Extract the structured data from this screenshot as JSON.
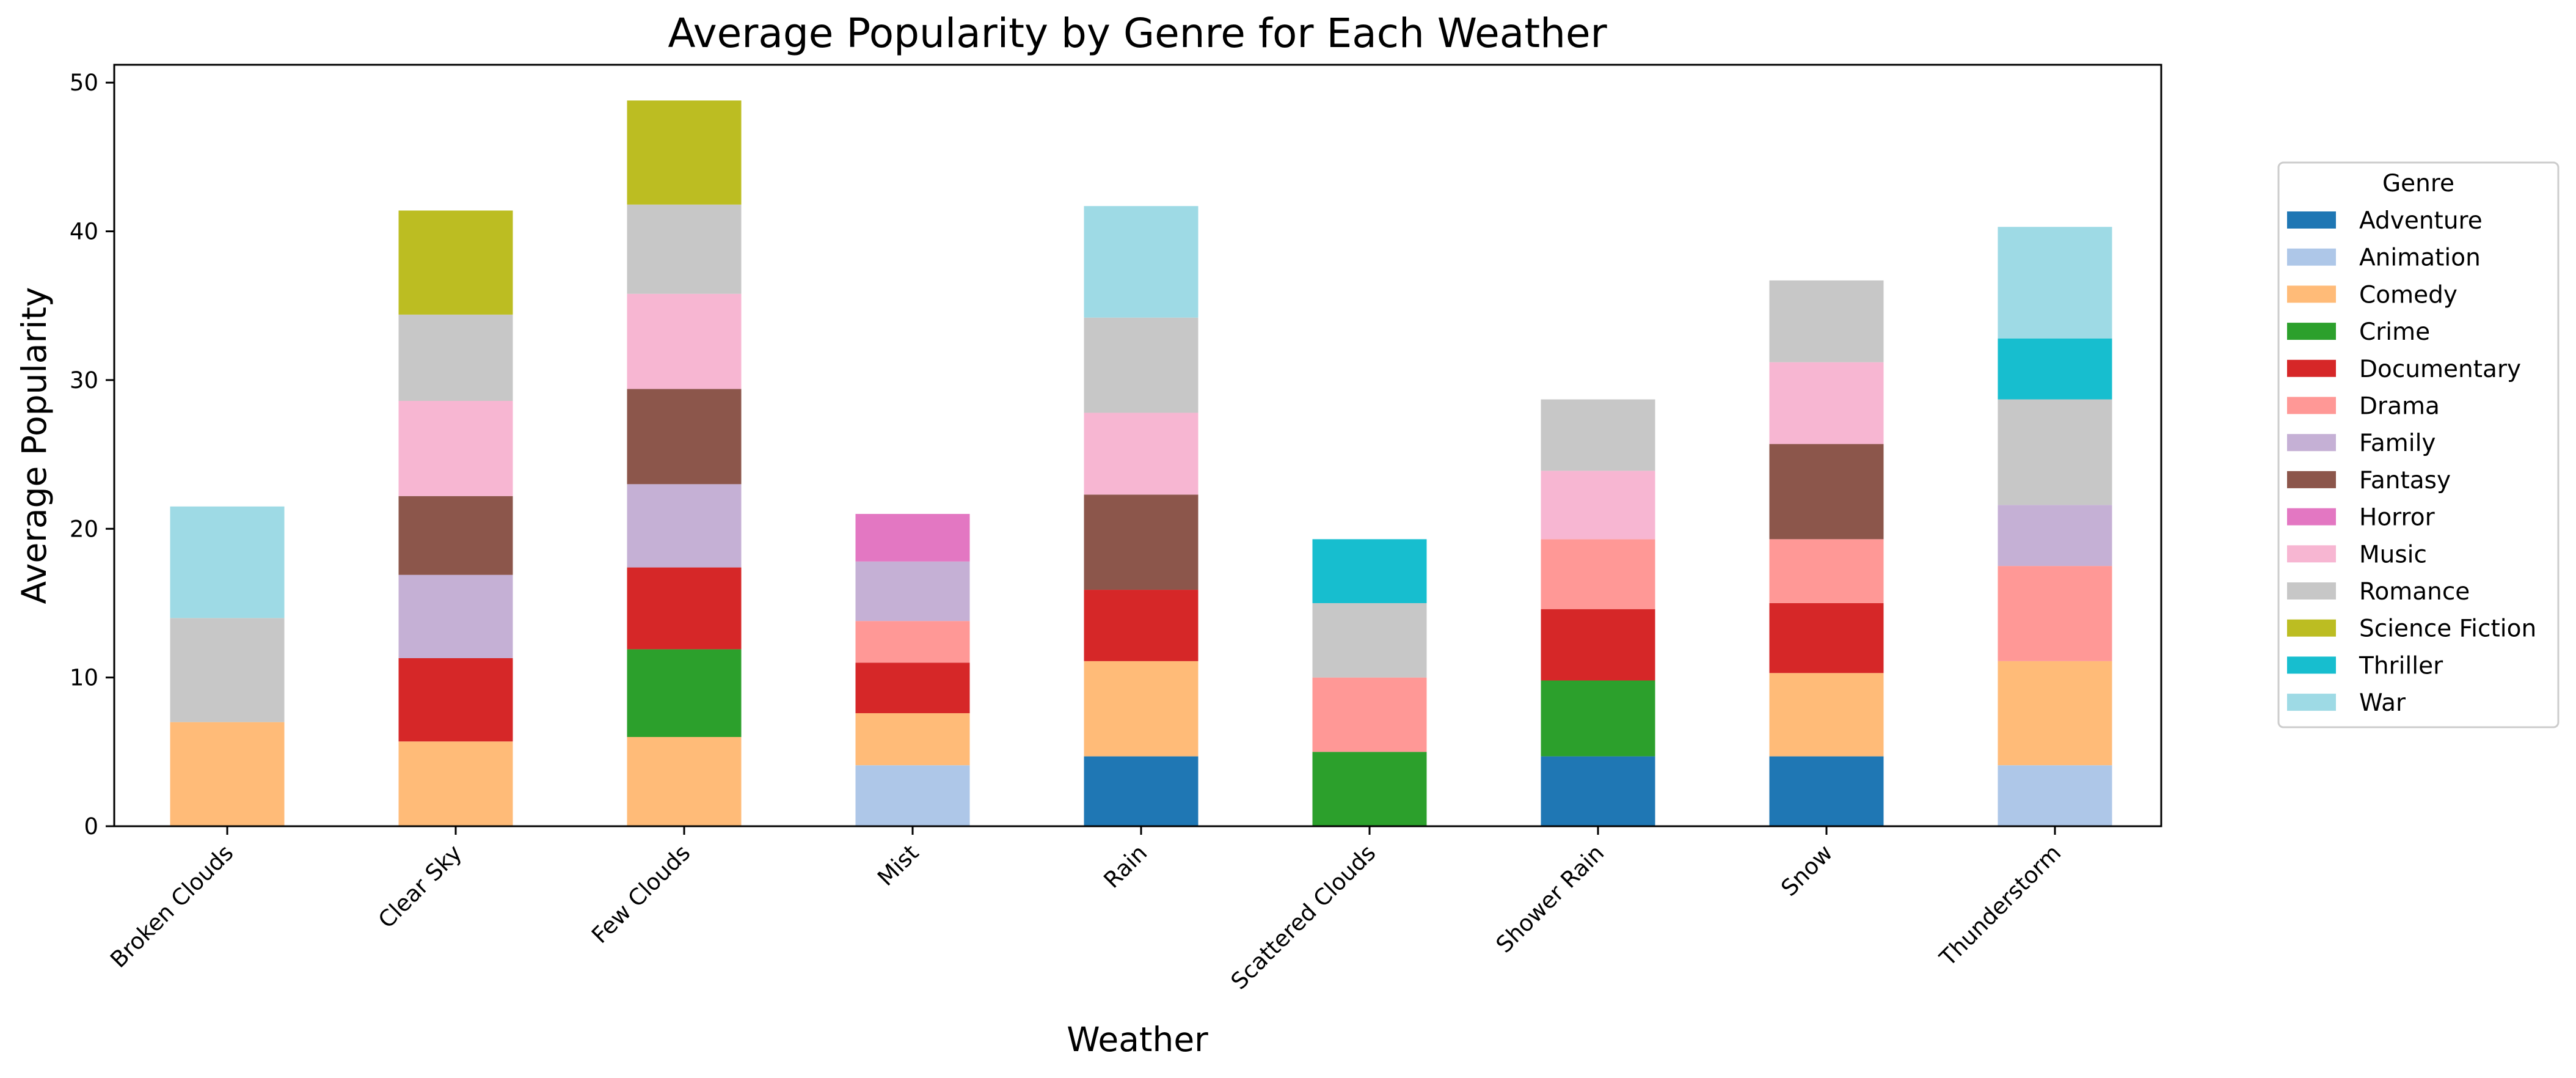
{
  "chart_data": {
    "type": "bar",
    "stacked": true,
    "title": "Average Popularity by Genre for Each Weather",
    "xlabel": "Weather",
    "ylabel": "Average Popularity",
    "ylim": [
      0,
      51.2
    ],
    "yticks": [
      0,
      10,
      20,
      30,
      40,
      50
    ],
    "grid": false,
    "legend_title": "Genre",
    "legend_position": "right",
    "categories": [
      "Broken Clouds",
      "Clear Sky",
      "Few Clouds",
      "Mist",
      "Rain",
      "Scattered Clouds",
      "Shower Rain",
      "Snow",
      "Thunderstorm"
    ],
    "series": [
      {
        "name": "Adventure",
        "color": "#1f77b4",
        "values": [
          0,
          0,
          0,
          0,
          4.7,
          0,
          4.7,
          4.7,
          0
        ]
      },
      {
        "name": "Animation",
        "color": "#aec7e8",
        "values": [
          0,
          0,
          0,
          4.1,
          0,
          0,
          0,
          0,
          4.1
        ]
      },
      {
        "name": "Comedy",
        "color": "#ffbb78",
        "values": [
          7.0,
          5.7,
          6.0,
          3.5,
          6.4,
          0,
          0,
          5.6,
          7.0
        ]
      },
      {
        "name": "Crime",
        "color": "#2ca02c",
        "values": [
          0,
          0,
          5.9,
          0,
          0,
          5.0,
          5.1,
          0,
          0
        ]
      },
      {
        "name": "Documentary",
        "color": "#d62728",
        "values": [
          0,
          5.6,
          5.5,
          3.4,
          4.8,
          0,
          4.8,
          4.7,
          0
        ]
      },
      {
        "name": "Drama",
        "color": "#ff9896",
        "values": [
          0,
          0,
          0,
          2.8,
          0,
          5.0,
          4.7,
          4.3,
          6.4
        ]
      },
      {
        "name": "Family",
        "color": "#c5b0d5",
        "values": [
          0,
          5.6,
          5.6,
          4.0,
          0,
          0,
          0,
          0,
          4.1
        ]
      },
      {
        "name": "Fantasy",
        "color": "#8c564b",
        "values": [
          0,
          5.3,
          6.4,
          0,
          6.4,
          0,
          0,
          6.4,
          0
        ]
      },
      {
        "name": "Horror",
        "color": "#e377c2",
        "values": [
          0,
          0,
          0,
          3.2,
          0,
          0,
          0,
          0,
          0
        ]
      },
      {
        "name": "Music",
        "color": "#f7b6d2",
        "values": [
          0,
          6.4,
          6.4,
          0,
          5.5,
          0,
          4.6,
          5.5,
          0
        ]
      },
      {
        "name": "Romance",
        "color": "#c7c7c7",
        "values": [
          7.0,
          5.8,
          6.0,
          0,
          6.4,
          5.0,
          4.8,
          5.5,
          7.1
        ]
      },
      {
        "name": "Science Fiction",
        "color": "#bcbd22",
        "values": [
          0,
          7.0,
          7.0,
          0,
          0,
          0,
          0,
          0,
          0
        ]
      },
      {
        "name": "Thriller",
        "color": "#17becf",
        "values": [
          0,
          0,
          0,
          0,
          0,
          4.3,
          0,
          0,
          4.1
        ]
      },
      {
        "name": "War",
        "color": "#9edae5",
        "values": [
          7.5,
          0,
          0,
          0,
          7.5,
          0,
          0,
          0,
          7.5
        ]
      }
    ]
  }
}
